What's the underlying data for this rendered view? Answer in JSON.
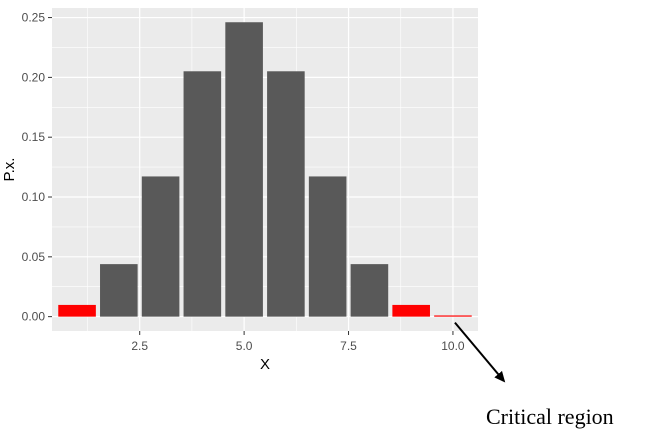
{
  "chart_data": {
    "type": "bar",
    "xlabel": "X",
    "ylabel": "P.x.",
    "x": [
      1,
      2,
      3,
      4,
      5,
      6,
      7,
      8,
      9,
      10
    ],
    "values": [
      0.0098,
      0.0439,
      0.1172,
      0.2051,
      0.2461,
      0.2051,
      0.1172,
      0.0439,
      0.0098,
      0.001
    ],
    "bar_colors": [
      "#ff0000",
      "#595959",
      "#595959",
      "#595959",
      "#595959",
      "#595959",
      "#595959",
      "#595959",
      "#ff0000",
      "#ff0000"
    ],
    "x_ticks": [
      2.5,
      5.0,
      7.5,
      10.0
    ],
    "x_tick_labels": [
      "2.5",
      "5.0",
      "7.5",
      "10.0"
    ],
    "y_ticks": [
      0.0,
      0.05,
      0.1,
      0.15,
      0.2,
      0.25
    ],
    "y_tick_labels": [
      "0.00",
      "0.05",
      "0.10",
      "0.15",
      "0.20",
      "0.25"
    ],
    "xlim": [
      0.4,
      10.6
    ],
    "ylim": [
      -0.012,
      0.258
    ],
    "grid": true,
    "panel_background": "#ebebeb",
    "grid_color": "#ffffff",
    "annotation": {
      "text": "Critical region",
      "points_to_x": 10
    }
  }
}
